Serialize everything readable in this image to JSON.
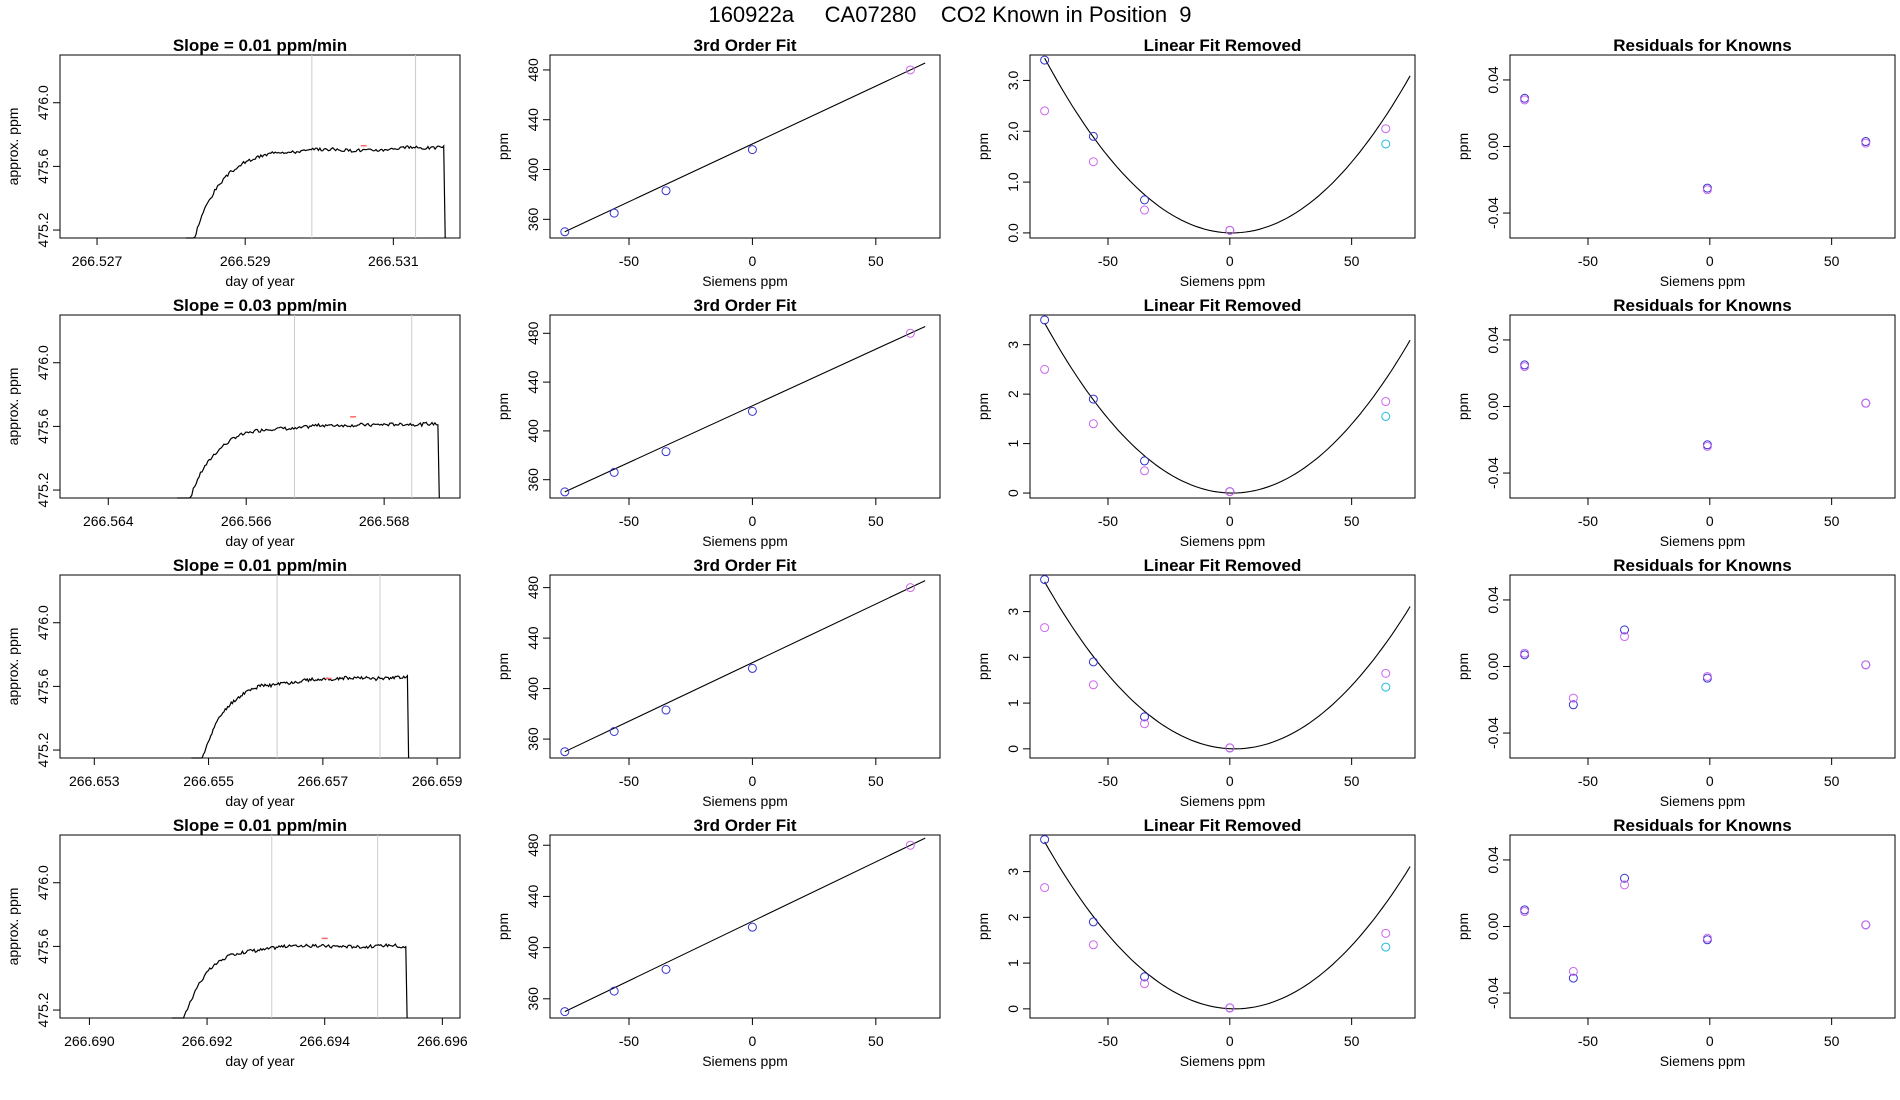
{
  "title": "160922a     CA07280    CO2 Known in Position  9",
  "colors": {
    "axis": "#000000",
    "trace": "#000000",
    "vline": "#cccccc",
    "known_a": "#3333cc",
    "known_b": "#cc66ee",
    "known_c": "#22bbdd",
    "marker_red": "#ff6666"
  },
  "chart_data": [
    {
      "type": "line",
      "row": 1,
      "title": "Slope =  0.01  ppm/min",
      "xlabel": "day of year",
      "ylabel": "approx. ppm",
      "xlim": [
        266.5265,
        266.5319
      ],
      "ylim": [
        475.15,
        476.3
      ],
      "xticks": [
        "266.527",
        "266.529",
        "266.531"
      ],
      "yticks": [
        "475.2",
        "475.6",
        "476.0"
      ],
      "vlines": [
        266.5299,
        266.5313
      ],
      "start": 266.5282,
      "end": 266.5317,
      "plateau": 475.73,
      "seed": 3
    },
    {
      "type": "line",
      "row": 1,
      "title": "3rd Order Fit",
      "xlabel": "Siemens ppm",
      "ylabel": "ppm",
      "xlim": [
        -82,
        76
      ],
      "ylim": [
        345,
        492
      ],
      "xticks": [
        "-50",
        "0",
        "50"
      ],
      "yticks": [
        "360",
        "400",
        "440",
        "480"
      ],
      "x": [
        -76,
        -56,
        -35,
        0,
        64
      ],
      "y": [
        350,
        365,
        383,
        416,
        480
      ],
      "curve": "line"
    },
    {
      "type": "scatter",
      "row": 1,
      "title": "Linear Fit Removed",
      "xlabel": "Siemens ppm",
      "ylabel": "ppm",
      "xlim": [
        -82,
        76
      ],
      "ylim": [
        -0.1,
        3.5
      ],
      "xticks": [
        "-50",
        "0",
        "50"
      ],
      "yticks": [
        "0.0",
        "1.0",
        "2.0",
        "3.0"
      ],
      "series": [
        {
          "name": "",
          "x": [
            -76,
            -56,
            -35,
            0
          ],
          "y": [
            3.4,
            1.9,
            0.65,
            0.05
          ],
          "color": "#3333cc"
        },
        {
          "name": "",
          "x": [
            -76,
            -56,
            -35,
            0,
            64
          ],
          "y": [
            2.4,
            1.4,
            0.45,
            0.05,
            2.05
          ],
          "color": "#cc66ee"
        },
        {
          "name": "",
          "x": [
            64
          ],
          "y": [
            1.75
          ],
          "color": "#22bbdd"
        }
      ],
      "curve": "quad",
      "a": 0.00058,
      "x0": 1,
      "c": 0.0
    },
    {
      "type": "scatter",
      "row": 1,
      "title": "Residuals for Knowns",
      "xlabel": "Siemens ppm",
      "ylabel": "ppm",
      "xlim": [
        -82,
        76
      ],
      "ylim": [
        -0.055,
        0.055
      ],
      "xticks": [
        "-50",
        "0",
        "50"
      ],
      "yticks": [
        "-0.04",
        "0.00",
        "0.04"
      ],
      "series": [
        {
          "name": "",
          "x": [
            -76,
            -1,
            64
          ],
          "y": [
            0.029,
            -0.025,
            0.003
          ],
          "color": "#3333cc"
        },
        {
          "name": "",
          "x": [
            -76,
            -1,
            64
          ],
          "y": [
            0.028,
            -0.026,
            0.002
          ],
          "color": "#cc66ee"
        }
      ]
    },
    {
      "type": "line",
      "row": 2,
      "title": "Slope =  0.03  ppm/min",
      "xlabel": "day of year",
      "ylabel": "approx. ppm",
      "xlim": [
        266.5633,
        266.5691
      ],
      "ylim": [
        475.15,
        476.3
      ],
      "xticks": [
        "266.564",
        "266.566",
        "266.568"
      ],
      "yticks": [
        "475.2",
        "475.6",
        "476.0"
      ],
      "vlines": [
        266.5667,
        266.5684
      ],
      "start": 266.565,
      "end": 266.5688,
      "plateau": 475.66,
      "seed": 7
    },
    {
      "type": "line",
      "row": 2,
      "title": "3rd Order Fit",
      "xlabel": "Siemens ppm",
      "ylabel": "ppm",
      "xlim": [
        -82,
        76
      ],
      "ylim": [
        345,
        495
      ],
      "xticks": [
        "-50",
        "0",
        "50"
      ],
      "yticks": [
        "360",
        "400",
        "440",
        "480"
      ],
      "x": [
        -76,
        -56,
        -35,
        0,
        64
      ],
      "y": [
        350,
        366,
        383,
        416,
        480
      ],
      "curve": "line"
    },
    {
      "type": "scatter",
      "row": 2,
      "title": "Linear Fit Removed",
      "xlabel": "Siemens ppm",
      "ylabel": "ppm",
      "xlim": [
        -82,
        76
      ],
      "ylim": [
        -0.1,
        3.6
      ],
      "xticks": [
        "-50",
        "0",
        "50"
      ],
      "yticks": [
        "0",
        "1",
        "2",
        "3"
      ],
      "series": [
        {
          "name": "",
          "x": [
            -76,
            -56,
            -35,
            0
          ],
          "y": [
            3.5,
            1.9,
            0.65,
            0.03
          ],
          "color": "#3333cc"
        },
        {
          "name": "",
          "x": [
            -76,
            -56,
            -35,
            0,
            64
          ],
          "y": [
            2.5,
            1.4,
            0.45,
            0.03,
            1.85
          ],
          "color": "#cc66ee"
        },
        {
          "name": "",
          "x": [
            64
          ],
          "y": [
            1.55
          ],
          "color": "#22bbdd"
        }
      ],
      "curve": "quad",
      "a": 0.00058,
      "x0": 1,
      "c": 0.0
    },
    {
      "type": "scatter",
      "row": 2,
      "title": "Residuals for Knowns",
      "xlabel": "Siemens ppm",
      "ylabel": "ppm",
      "xlim": [
        -82,
        76
      ],
      "ylim": [
        -0.055,
        0.055
      ],
      "xticks": [
        "-50",
        "0",
        "50"
      ],
      "yticks": [
        "-0.04",
        "0.00",
        "0.04"
      ],
      "series": [
        {
          "name": "",
          "x": [
            -76,
            -1,
            64
          ],
          "y": [
            0.025,
            -0.023,
            0.002
          ],
          "color": "#3333cc"
        },
        {
          "name": "",
          "x": [
            -76,
            -1,
            64
          ],
          "y": [
            0.024,
            -0.024,
            0.002
          ],
          "color": "#cc66ee"
        }
      ]
    },
    {
      "type": "line",
      "row": 3,
      "title": "Slope =  0.01  ppm/min",
      "xlabel": "day of year",
      "ylabel": "approx. ppm",
      "xlim": [
        266.6524,
        266.6594
      ],
      "ylim": [
        475.15,
        476.3
      ],
      "xticks": [
        "266.653",
        "266.655",
        "266.657",
        "266.659"
      ],
      "yticks": [
        "475.2",
        "475.6",
        "476.0"
      ],
      "vlines": [
        266.6562,
        266.658
      ],
      "start": 266.6547,
      "end": 266.6585,
      "plateau": 475.65,
      "seed": 11
    },
    {
      "type": "line",
      "row": 3,
      "title": "3rd Order Fit",
      "xlabel": "Siemens ppm",
      "ylabel": "ppm",
      "xlim": [
        -82,
        76
      ],
      "ylim": [
        345,
        490
      ],
      "xticks": [
        "-50",
        "0",
        "50"
      ],
      "yticks": [
        "360",
        "400",
        "440",
        "480"
      ],
      "x": [
        -76,
        -56,
        -35,
        0,
        64
      ],
      "y": [
        350,
        366,
        383,
        416,
        480
      ],
      "curve": "line"
    },
    {
      "type": "scatter",
      "row": 3,
      "title": "Linear Fit Removed",
      "xlabel": "Siemens ppm",
      "ylabel": "ppm",
      "xlim": [
        -82,
        76
      ],
      "ylim": [
        -0.2,
        3.8
      ],
      "xticks": [
        "-50",
        "0",
        "50"
      ],
      "yticks": [
        "0",
        "1",
        "2",
        "3"
      ],
      "series": [
        {
          "name": "",
          "x": [
            -76,
            -56,
            -35,
            0
          ],
          "y": [
            3.7,
            1.9,
            0.7,
            0.02
          ],
          "color": "#3333cc"
        },
        {
          "name": "",
          "x": [
            -76,
            -56,
            -35,
            0,
            64
          ],
          "y": [
            2.65,
            1.4,
            0.55,
            0.02,
            1.65
          ],
          "color": "#cc66ee"
        },
        {
          "name": "",
          "x": [
            64
          ],
          "y": [
            1.35
          ],
          "color": "#22bbdd"
        }
      ],
      "curve": "quad",
      "a": 0.0006,
      "x0": 2,
      "c": 0.0
    },
    {
      "type": "scatter",
      "row": 3,
      "title": "Residuals for Knowns",
      "xlabel": "Siemens ppm",
      "ylabel": "ppm",
      "xlim": [
        -82,
        76
      ],
      "ylim": [
        -0.055,
        0.055
      ],
      "xticks": [
        "-50",
        "0",
        "50"
      ],
      "yticks": [
        "-0.04",
        "0.00",
        "0.04"
      ],
      "series": [
        {
          "name": "",
          "x": [
            -76,
            -56,
            -35,
            -1,
            64
          ],
          "y": [
            0.007,
            -0.023,
            0.022,
            -0.007,
            0.001
          ],
          "color": "#3333cc"
        },
        {
          "name": "",
          "x": [
            -76,
            -56,
            -35,
            -1,
            64
          ],
          "y": [
            0.008,
            -0.019,
            0.018,
            -0.006,
            0.001
          ],
          "color": "#cc66ee"
        }
      ]
    },
    {
      "type": "line",
      "row": 4,
      "title": "Slope =  0.01  ppm/min",
      "xlabel": "day of year",
      "ylabel": "approx. ppm",
      "xlim": [
        266.6895,
        266.6963
      ],
      "ylim": [
        475.15,
        476.3
      ],
      "xticks": [
        "266.690",
        "266.692",
        "266.694",
        "266.696"
      ],
      "yticks": [
        "475.2",
        "475.6",
        "476.0"
      ],
      "vlines": [
        266.6931,
        266.6949
      ],
      "start": 266.6914,
      "end": 266.6954,
      "plateau": 475.65,
      "seed": 17
    },
    {
      "type": "line",
      "row": 4,
      "title": "3rd Order Fit",
      "xlabel": "Siemens ppm",
      "ylabel": "ppm",
      "xlim": [
        -82,
        76
      ],
      "ylim": [
        345,
        488
      ],
      "xticks": [
        "-50",
        "0",
        "50"
      ],
      "yticks": [
        "360",
        "400",
        "440",
        "480"
      ],
      "x": [
        -76,
        -56,
        -35,
        0,
        64
      ],
      "y": [
        350,
        366,
        383,
        416,
        480
      ],
      "curve": "line"
    },
    {
      "type": "scatter",
      "row": 4,
      "title": "Linear Fit Removed",
      "xlabel": "Siemens ppm",
      "ylabel": "ppm",
      "xlim": [
        -82,
        76
      ],
      "ylim": [
        -0.2,
        3.8
      ],
      "xticks": [
        "-50",
        "0",
        "50"
      ],
      "yticks": [
        "0",
        "1",
        "2",
        "3"
      ],
      "series": [
        {
          "name": "",
          "x": [
            -76,
            -56,
            -35,
            0
          ],
          "y": [
            3.7,
            1.9,
            0.7,
            0.02
          ],
          "color": "#3333cc"
        },
        {
          "name": "",
          "x": [
            -76,
            -56,
            -35,
            0,
            64
          ],
          "y": [
            2.65,
            1.4,
            0.55,
            0.02,
            1.65
          ],
          "color": "#cc66ee"
        },
        {
          "name": "",
          "x": [
            64
          ],
          "y": [
            1.35
          ],
          "color": "#22bbdd"
        }
      ],
      "curve": "quad",
      "a": 0.0006,
      "x0": 2,
      "c": 0.0
    },
    {
      "type": "scatter",
      "row": 4,
      "title": "Residuals for Knowns",
      "xlabel": "Siemens ppm",
      "ylabel": "ppm",
      "xlim": [
        -82,
        76
      ],
      "ylim": [
        -0.055,
        0.055
      ],
      "xticks": [
        "-50",
        "0",
        "50"
      ],
      "yticks": [
        "-0.04",
        "0.00",
        "0.04"
      ],
      "series": [
        {
          "name": "",
          "x": [
            -76,
            -56,
            -35,
            -1,
            64
          ],
          "y": [
            0.01,
            -0.031,
            0.029,
            -0.008,
            0.001
          ],
          "color": "#3333cc"
        },
        {
          "name": "",
          "x": [
            -76,
            -56,
            -35,
            -1,
            64
          ],
          "y": [
            0.009,
            -0.027,
            0.025,
            -0.007,
            0.001
          ],
          "color": "#cc66ee"
        }
      ]
    }
  ]
}
